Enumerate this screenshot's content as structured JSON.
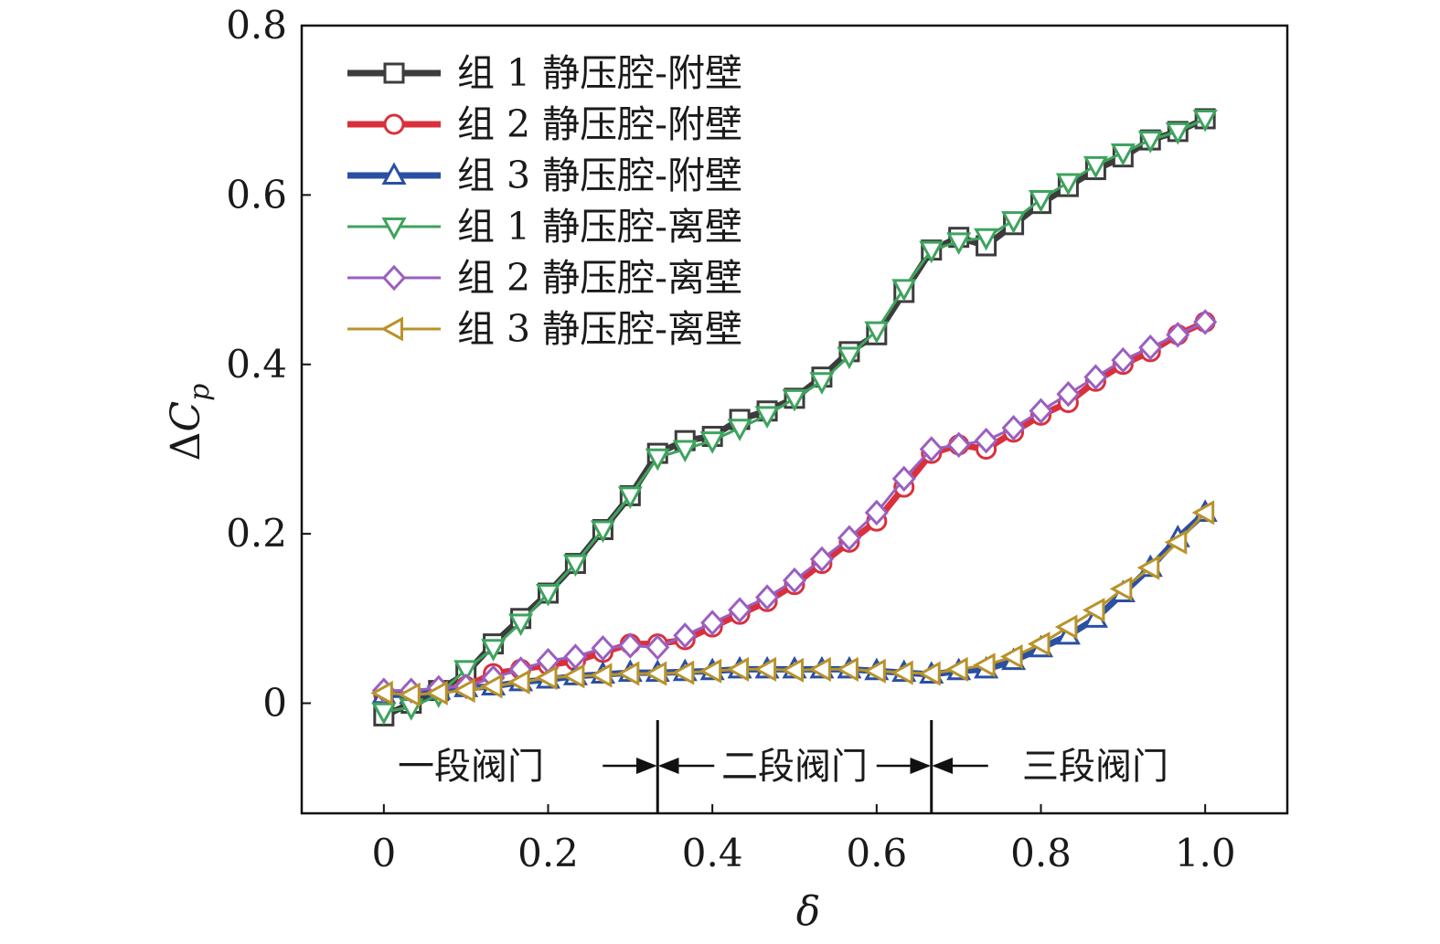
{
  "chart_data": {
    "type": "line",
    "title": "",
    "xlabel": "δ",
    "ylabel_prefix": "Δ",
    "ylabel_main": "C",
    "ylabel_sub": "p",
    "xlim": [
      -0.1,
      1.1
    ],
    "ylim": [
      -0.13,
      0.8
    ],
    "xticks": [
      0,
      0.2,
      0.4,
      0.6,
      0.8,
      1.0
    ],
    "xtick_labels": [
      "0",
      "0.2",
      "0.4",
      "0.6",
      "0.8",
      "1.0"
    ],
    "yticks": [
      0,
      0.2,
      0.4,
      0.6,
      0.8
    ],
    "ytick_labels": [
      "0",
      "0.2",
      "0.4",
      "0.6",
      "0.8"
    ],
    "legend_position": "top-left",
    "x": [
      0,
      0.0333,
      0.0667,
      0.1,
      0.1333,
      0.1667,
      0.2,
      0.2333,
      0.2667,
      0.3,
      0.3333,
      0.3667,
      0.4,
      0.4333,
      0.4667,
      0.5,
      0.5333,
      0.5667,
      0.6,
      0.6333,
      0.6667,
      0.7,
      0.7333,
      0.7667,
      0.8,
      0.8333,
      0.8667,
      0.9,
      0.9333,
      0.9667,
      1.0
    ],
    "series": [
      {
        "name": "组 1 静压腔-附壁",
        "color": "#3c3c3c",
        "marker": "square",
        "width": 7,
        "values": [
          -0.015,
          0.0,
          0.015,
          0.035,
          0.07,
          0.1,
          0.13,
          0.165,
          0.205,
          0.245,
          0.295,
          0.31,
          0.315,
          0.335,
          0.345,
          0.36,
          0.385,
          0.415,
          0.435,
          0.485,
          0.535,
          0.55,
          0.54,
          0.565,
          0.59,
          0.61,
          0.63,
          0.645,
          0.665,
          0.675,
          0.69
        ]
      },
      {
        "name": "组 2 静压腔-附壁",
        "color": "#d9303c",
        "marker": "circle",
        "width": 7,
        "values": [
          0.01,
          0.012,
          0.015,
          0.02,
          0.035,
          0.04,
          0.045,
          0.05,
          0.06,
          0.07,
          0.07,
          0.075,
          0.09,
          0.105,
          0.12,
          0.14,
          0.165,
          0.19,
          0.215,
          0.255,
          0.295,
          0.305,
          0.3,
          0.32,
          0.34,
          0.355,
          0.38,
          0.4,
          0.415,
          0.435,
          0.45
        ]
      },
      {
        "name": "组 3 静压腔-附壁",
        "color": "#2a4fa3",
        "marker": "triangle-up",
        "width": 7,
        "values": [
          0.01,
          0.01,
          0.015,
          0.018,
          0.02,
          0.025,
          0.028,
          0.032,
          0.034,
          0.036,
          0.036,
          0.037,
          0.038,
          0.04,
          0.04,
          0.04,
          0.04,
          0.04,
          0.038,
          0.036,
          0.034,
          0.038,
          0.04,
          0.05,
          0.065,
          0.08,
          0.1,
          0.13,
          0.16,
          0.195,
          0.225
        ]
      },
      {
        "name": "组 1 静压腔-离壁",
        "color": "#3ea35e",
        "marker": "triangle-down",
        "width": 3,
        "values": [
          -0.01,
          -0.005,
          0.01,
          0.04,
          0.065,
          0.095,
          0.13,
          0.165,
          0.205,
          0.245,
          0.29,
          0.3,
          0.31,
          0.325,
          0.34,
          0.36,
          0.38,
          0.41,
          0.44,
          0.49,
          0.535,
          0.545,
          0.55,
          0.57,
          0.595,
          0.615,
          0.635,
          0.65,
          0.665,
          0.675,
          0.69
        ]
      },
      {
        "name": "组 2 静压腔-离壁",
        "color": "#9b5fc0",
        "marker": "diamond",
        "width": 3,
        "values": [
          0.015,
          0.015,
          0.018,
          0.02,
          0.03,
          0.04,
          0.05,
          0.055,
          0.065,
          0.068,
          0.066,
          0.08,
          0.095,
          0.11,
          0.125,
          0.145,
          0.17,
          0.195,
          0.225,
          0.265,
          0.3,
          0.305,
          0.31,
          0.325,
          0.345,
          0.365,
          0.385,
          0.405,
          0.42,
          0.435,
          0.45
        ]
      },
      {
        "name": "组 3 静压腔-离壁",
        "color": "#b8932a",
        "marker": "triangle-left",
        "width": 3,
        "values": [
          0.012,
          0.01,
          0.012,
          0.015,
          0.02,
          0.025,
          0.03,
          0.032,
          0.033,
          0.035,
          0.035,
          0.036,
          0.038,
          0.04,
          0.04,
          0.039,
          0.04,
          0.04,
          0.038,
          0.036,
          0.035,
          0.04,
          0.045,
          0.055,
          0.07,
          0.09,
          0.11,
          0.135,
          0.16,
          0.19,
          0.225
        ]
      }
    ],
    "annotations": {
      "stage1": "一段阀门",
      "stage2": "二段阀门",
      "stage3": "三段阀门",
      "boundaries": [
        0.3333,
        0.6667
      ]
    }
  }
}
